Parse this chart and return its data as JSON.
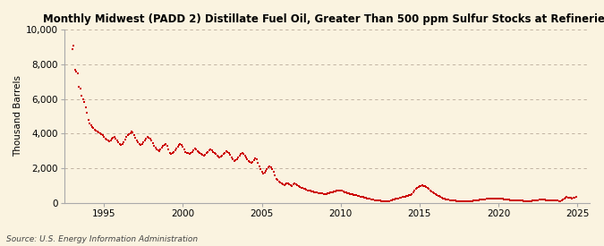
{
  "title": "Monthly Midwest (PADD 2) Distillate Fuel Oil, Greater Than 500 ppm Sulfur Stocks at Refineries",
  "ylabel": "Thousand Barrels",
  "source": "Source: U.S. Energy Information Administration",
  "background_color": "#faf3e0",
  "dot_color": "#cc0000",
  "grid_color": "#b8a898",
  "ylim": [
    0,
    10000
  ],
  "yticks": [
    0,
    2000,
    4000,
    6000,
    8000,
    10000
  ],
  "xlim_start": 1992.5,
  "xlim_end": 2025.8,
  "xticks": [
    1995,
    2000,
    2005,
    2010,
    2015,
    2020,
    2025
  ],
  "data_points": [
    [
      1993.0,
      8900
    ],
    [
      1993.08,
      9100
    ],
    [
      1993.17,
      7700
    ],
    [
      1993.25,
      7600
    ],
    [
      1993.33,
      7500
    ],
    [
      1993.42,
      6700
    ],
    [
      1993.5,
      6600
    ],
    [
      1993.58,
      6200
    ],
    [
      1993.67,
      6000
    ],
    [
      1993.75,
      5800
    ],
    [
      1993.83,
      5500
    ],
    [
      1993.92,
      5200
    ],
    [
      1994.0,
      4800
    ],
    [
      1994.08,
      4600
    ],
    [
      1994.17,
      4500
    ],
    [
      1994.25,
      4400
    ],
    [
      1994.33,
      4350
    ],
    [
      1994.42,
      4200
    ],
    [
      1994.5,
      4150
    ],
    [
      1994.58,
      4100
    ],
    [
      1994.67,
      4050
    ],
    [
      1994.75,
      4000
    ],
    [
      1994.83,
      3950
    ],
    [
      1994.92,
      3900
    ],
    [
      1995.0,
      3800
    ],
    [
      1995.08,
      3700
    ],
    [
      1995.17,
      3650
    ],
    [
      1995.25,
      3600
    ],
    [
      1995.33,
      3550
    ],
    [
      1995.42,
      3600
    ],
    [
      1995.5,
      3700
    ],
    [
      1995.58,
      3750
    ],
    [
      1995.67,
      3800
    ],
    [
      1995.75,
      3700
    ],
    [
      1995.83,
      3600
    ],
    [
      1995.92,
      3500
    ],
    [
      1996.0,
      3400
    ],
    [
      1996.08,
      3350
    ],
    [
      1996.17,
      3400
    ],
    [
      1996.25,
      3500
    ],
    [
      1996.33,
      3650
    ],
    [
      1996.42,
      3800
    ],
    [
      1996.5,
      3900
    ],
    [
      1996.58,
      3950
    ],
    [
      1996.67,
      4000
    ],
    [
      1996.75,
      4100
    ],
    [
      1996.83,
      4050
    ],
    [
      1996.92,
      3900
    ],
    [
      1997.0,
      3750
    ],
    [
      1997.08,
      3600
    ],
    [
      1997.17,
      3500
    ],
    [
      1997.25,
      3400
    ],
    [
      1997.33,
      3350
    ],
    [
      1997.42,
      3400
    ],
    [
      1997.5,
      3500
    ],
    [
      1997.58,
      3600
    ],
    [
      1997.67,
      3700
    ],
    [
      1997.75,
      3800
    ],
    [
      1997.83,
      3750
    ],
    [
      1997.92,
      3700
    ],
    [
      1998.0,
      3600
    ],
    [
      1998.08,
      3450
    ],
    [
      1998.17,
      3300
    ],
    [
      1998.25,
      3200
    ],
    [
      1998.33,
      3100
    ],
    [
      1998.42,
      3050
    ],
    [
      1998.5,
      3000
    ],
    [
      1998.58,
      3100
    ],
    [
      1998.67,
      3200
    ],
    [
      1998.75,
      3300
    ],
    [
      1998.83,
      3350
    ],
    [
      1998.92,
      3400
    ],
    [
      1999.0,
      3300
    ],
    [
      1999.08,
      3100
    ],
    [
      1999.17,
      2900
    ],
    [
      1999.25,
      2800
    ],
    [
      1999.33,
      2850
    ],
    [
      1999.42,
      2950
    ],
    [
      1999.5,
      3050
    ],
    [
      1999.58,
      3150
    ],
    [
      1999.67,
      3250
    ],
    [
      1999.75,
      3350
    ],
    [
      1999.83,
      3400
    ],
    [
      1999.92,
      3350
    ],
    [
      2000.0,
      3250
    ],
    [
      2000.08,
      3100
    ],
    [
      2000.17,
      2950
    ],
    [
      2000.25,
      2900
    ],
    [
      2000.33,
      2850
    ],
    [
      2000.42,
      2800
    ],
    [
      2000.5,
      2850
    ],
    [
      2000.58,
      2950
    ],
    [
      2000.67,
      3050
    ],
    [
      2000.75,
      3150
    ],
    [
      2000.83,
      3100
    ],
    [
      2000.92,
      3000
    ],
    [
      2001.0,
      2950
    ],
    [
      2001.08,
      2850
    ],
    [
      2001.17,
      2800
    ],
    [
      2001.25,
      2750
    ],
    [
      2001.33,
      2700
    ],
    [
      2001.42,
      2750
    ],
    [
      2001.5,
      2850
    ],
    [
      2001.58,
      2950
    ],
    [
      2001.67,
      3050
    ],
    [
      2001.75,
      3100
    ],
    [
      2001.83,
      3050
    ],
    [
      2001.92,
      2950
    ],
    [
      2002.0,
      2900
    ],
    [
      2002.08,
      2800
    ],
    [
      2002.17,
      2700
    ],
    [
      2002.25,
      2650
    ],
    [
      2002.33,
      2600
    ],
    [
      2002.42,
      2650
    ],
    [
      2002.5,
      2700
    ],
    [
      2002.58,
      2800
    ],
    [
      2002.67,
      2900
    ],
    [
      2002.75,
      3000
    ],
    [
      2002.83,
      2950
    ],
    [
      2002.92,
      2850
    ],
    [
      2003.0,
      2750
    ],
    [
      2003.08,
      2600
    ],
    [
      2003.17,
      2500
    ],
    [
      2003.25,
      2400
    ],
    [
      2003.33,
      2450
    ],
    [
      2003.42,
      2500
    ],
    [
      2003.5,
      2600
    ],
    [
      2003.58,
      2700
    ],
    [
      2003.67,
      2800
    ],
    [
      2003.75,
      2850
    ],
    [
      2003.83,
      2800
    ],
    [
      2003.92,
      2700
    ],
    [
      2004.0,
      2600
    ],
    [
      2004.08,
      2500
    ],
    [
      2004.17,
      2400
    ],
    [
      2004.25,
      2350
    ],
    [
      2004.33,
      2300
    ],
    [
      2004.42,
      2350
    ],
    [
      2004.5,
      2450
    ],
    [
      2004.58,
      2550
    ],
    [
      2004.67,
      2500
    ],
    [
      2004.75,
      2300
    ],
    [
      2004.83,
      2100
    ],
    [
      2004.92,
      1950
    ],
    [
      2005.0,
      1800
    ],
    [
      2005.08,
      1700
    ],
    [
      2005.17,
      1750
    ],
    [
      2005.25,
      1850
    ],
    [
      2005.33,
      1950
    ],
    [
      2005.42,
      2050
    ],
    [
      2005.5,
      2100
    ],
    [
      2005.58,
      2050
    ],
    [
      2005.67,
      1950
    ],
    [
      2005.75,
      1800
    ],
    [
      2005.83,
      1600
    ],
    [
      2005.92,
      1400
    ],
    [
      2006.0,
      1300
    ],
    [
      2006.08,
      1200
    ],
    [
      2006.17,
      1150
    ],
    [
      2006.25,
      1100
    ],
    [
      2006.33,
      1050
    ],
    [
      2006.42,
      1000
    ],
    [
      2006.5,
      1050
    ],
    [
      2006.58,
      1100
    ],
    [
      2006.67,
      1100
    ],
    [
      2006.75,
      1050
    ],
    [
      2006.83,
      1000
    ],
    [
      2006.92,
      980
    ],
    [
      2007.0,
      1050
    ],
    [
      2007.08,
      1100
    ],
    [
      2007.17,
      1050
    ],
    [
      2007.25,
      1000
    ],
    [
      2007.33,
      950
    ],
    [
      2007.42,
      900
    ],
    [
      2007.5,
      870
    ],
    [
      2007.58,
      840
    ],
    [
      2007.67,
      810
    ],
    [
      2007.75,
      780
    ],
    [
      2007.83,
      750
    ],
    [
      2007.92,
      720
    ],
    [
      2008.0,
      700
    ],
    [
      2008.08,
      680
    ],
    [
      2008.17,
      660
    ],
    [
      2008.25,
      640
    ],
    [
      2008.33,
      620
    ],
    [
      2008.42,
      600
    ],
    [
      2008.5,
      580
    ],
    [
      2008.58,
      560
    ],
    [
      2008.67,
      550
    ],
    [
      2008.75,
      540
    ],
    [
      2008.83,
      530
    ],
    [
      2008.92,
      520
    ],
    [
      2009.0,
      510
    ],
    [
      2009.08,
      520
    ],
    [
      2009.17,
      540
    ],
    [
      2009.25,
      560
    ],
    [
      2009.33,
      580
    ],
    [
      2009.42,
      600
    ],
    [
      2009.5,
      620
    ],
    [
      2009.58,
      640
    ],
    [
      2009.67,
      660
    ],
    [
      2009.75,
      680
    ],
    [
      2009.83,
      700
    ],
    [
      2009.92,
      720
    ],
    [
      2010.0,
      700
    ],
    [
      2010.08,
      680
    ],
    [
      2010.17,
      650
    ],
    [
      2010.25,
      620
    ],
    [
      2010.33,
      590
    ],
    [
      2010.42,
      560
    ],
    [
      2010.5,
      540
    ],
    [
      2010.58,
      520
    ],
    [
      2010.67,
      500
    ],
    [
      2010.75,
      480
    ],
    [
      2010.83,
      460
    ],
    [
      2010.92,
      440
    ],
    [
      2011.0,
      420
    ],
    [
      2011.08,
      400
    ],
    [
      2011.17,
      380
    ],
    [
      2011.25,
      360
    ],
    [
      2011.33,
      340
    ],
    [
      2011.42,
      320
    ],
    [
      2011.5,
      300
    ],
    [
      2011.58,
      280
    ],
    [
      2011.67,
      260
    ],
    [
      2011.75,
      240
    ],
    [
      2011.83,
      220
    ],
    [
      2011.92,
      200
    ],
    [
      2012.0,
      180
    ],
    [
      2012.08,
      160
    ],
    [
      2012.17,
      150
    ],
    [
      2012.25,
      140
    ],
    [
      2012.33,
      130
    ],
    [
      2012.42,
      120
    ],
    [
      2012.5,
      110
    ],
    [
      2012.58,
      100
    ],
    [
      2012.67,
      90
    ],
    [
      2012.75,
      80
    ],
    [
      2012.83,
      70
    ],
    [
      2012.92,
      60
    ],
    [
      2013.0,
      80
    ],
    [
      2013.08,
      100
    ],
    [
      2013.17,
      120
    ],
    [
      2013.25,
      150
    ],
    [
      2013.33,
      180
    ],
    [
      2013.42,
      200
    ],
    [
      2013.5,
      220
    ],
    [
      2013.58,
      240
    ],
    [
      2013.67,
      260
    ],
    [
      2013.75,
      280
    ],
    [
      2013.83,
      300
    ],
    [
      2013.92,
      320
    ],
    [
      2014.0,
      340
    ],
    [
      2014.08,
      360
    ],
    [
      2014.17,
      380
    ],
    [
      2014.25,
      400
    ],
    [
      2014.33,
      420
    ],
    [
      2014.42,
      450
    ],
    [
      2014.5,
      500
    ],
    [
      2014.58,
      580
    ],
    [
      2014.67,
      680
    ],
    [
      2014.75,
      780
    ],
    [
      2014.83,
      860
    ],
    [
      2014.92,
      900
    ],
    [
      2015.0,
      950
    ],
    [
      2015.08,
      980
    ],
    [
      2015.17,
      1000
    ],
    [
      2015.25,
      980
    ],
    [
      2015.33,
      950
    ],
    [
      2015.42,
      900
    ],
    [
      2015.5,
      840
    ],
    [
      2015.58,
      780
    ],
    [
      2015.67,
      720
    ],
    [
      2015.75,
      660
    ],
    [
      2015.83,
      600
    ],
    [
      2015.92,
      540
    ],
    [
      2016.0,
      490
    ],
    [
      2016.08,
      450
    ],
    [
      2016.17,
      410
    ],
    [
      2016.25,
      370
    ],
    [
      2016.33,
      330
    ],
    [
      2016.42,
      290
    ],
    [
      2016.5,
      260
    ],
    [
      2016.58,
      230
    ],
    [
      2016.67,
      200
    ],
    [
      2016.75,
      180
    ],
    [
      2016.83,
      160
    ],
    [
      2016.92,
      150
    ],
    [
      2017.0,
      140
    ],
    [
      2017.08,
      130
    ],
    [
      2017.17,
      120
    ],
    [
      2017.25,
      110
    ],
    [
      2017.33,
      100
    ],
    [
      2017.42,
      90
    ],
    [
      2017.5,
      80
    ],
    [
      2017.58,
      75
    ],
    [
      2017.67,
      70
    ],
    [
      2017.75,
      65
    ],
    [
      2017.83,
      60
    ],
    [
      2017.92,
      55
    ],
    [
      2018.0,
      60
    ],
    [
      2018.08,
      70
    ],
    [
      2018.17,
      80
    ],
    [
      2018.25,
      90
    ],
    [
      2018.33,
      100
    ],
    [
      2018.42,
      110
    ],
    [
      2018.5,
      120
    ],
    [
      2018.58,
      130
    ],
    [
      2018.67,
      140
    ],
    [
      2018.75,
      150
    ],
    [
      2018.83,
      160
    ],
    [
      2018.92,
      170
    ],
    [
      2019.0,
      180
    ],
    [
      2019.08,
      190
    ],
    [
      2019.17,
      200
    ],
    [
      2019.25,
      210
    ],
    [
      2019.33,
      220
    ],
    [
      2019.42,
      230
    ],
    [
      2019.5,
      240
    ],
    [
      2019.58,
      250
    ],
    [
      2019.67,
      255
    ],
    [
      2019.75,
      260
    ],
    [
      2019.83,
      255
    ],
    [
      2019.92,
      250
    ],
    [
      2020.0,
      240
    ],
    [
      2020.08,
      230
    ],
    [
      2020.17,
      220
    ],
    [
      2020.25,
      210
    ],
    [
      2020.33,
      200
    ],
    [
      2020.42,
      190
    ],
    [
      2020.5,
      180
    ],
    [
      2020.58,
      170
    ],
    [
      2020.67,
      160
    ],
    [
      2020.75,
      155
    ],
    [
      2020.83,
      150
    ],
    [
      2020.92,
      145
    ],
    [
      2021.0,
      140
    ],
    [
      2021.08,
      135
    ],
    [
      2021.17,
      130
    ],
    [
      2021.25,
      125
    ],
    [
      2021.33,
      120
    ],
    [
      2021.42,
      115
    ],
    [
      2021.5,
      110
    ],
    [
      2021.58,
      105
    ],
    [
      2021.67,
      100
    ],
    [
      2021.75,
      95
    ],
    [
      2021.83,
      90
    ],
    [
      2021.92,
      85
    ],
    [
      2022.0,
      90
    ],
    [
      2022.08,
      100
    ],
    [
      2022.17,
      110
    ],
    [
      2022.25,
      120
    ],
    [
      2022.33,
      130
    ],
    [
      2022.42,
      140
    ],
    [
      2022.5,
      150
    ],
    [
      2022.58,
      160
    ],
    [
      2022.67,
      165
    ],
    [
      2022.75,
      170
    ],
    [
      2022.83,
      165
    ],
    [
      2022.92,
      160
    ],
    [
      2023.0,
      155
    ],
    [
      2023.08,
      150
    ],
    [
      2023.17,
      145
    ],
    [
      2023.25,
      140
    ],
    [
      2023.33,
      135
    ],
    [
      2023.42,
      130
    ],
    [
      2023.5,
      125
    ],
    [
      2023.58,
      120
    ],
    [
      2023.67,
      115
    ],
    [
      2023.75,
      110
    ],
    [
      2023.83,
      105
    ],
    [
      2023.92,
      100
    ],
    [
      2024.0,
      150
    ],
    [
      2024.08,
      200
    ],
    [
      2024.17,
      250
    ],
    [
      2024.25,
      300
    ],
    [
      2024.33,
      320
    ],
    [
      2024.42,
      310
    ],
    [
      2024.5,
      290
    ],
    [
      2024.58,
      270
    ],
    [
      2024.67,
      260
    ],
    [
      2024.75,
      280
    ],
    [
      2024.83,
      300
    ],
    [
      2024.92,
      320
    ]
  ]
}
